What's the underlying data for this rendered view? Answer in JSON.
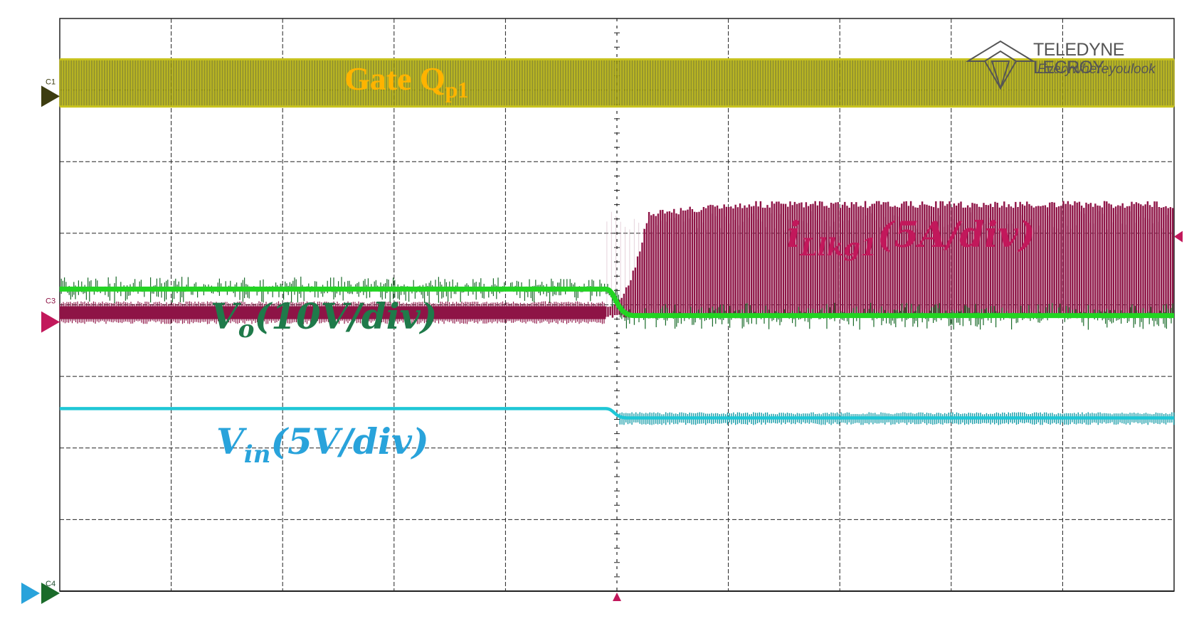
{
  "colors": {
    "gate": "#c8c31e",
    "gate_label": "#ffb300",
    "ilkg": "#8e1446",
    "ilkg_label": "#c2185b",
    "vo": "#22d422",
    "vo_dark": "#1a6b2a",
    "vo_label": "#1f7a4a",
    "vin": "#1fc7d6",
    "vin_label": "#29a3db",
    "grid": "#222222"
  },
  "brand": {
    "name": "TELEDYNE LECROY",
    "tagline": "Everywhereyoulook"
  },
  "markers": {
    "c1": "C1",
    "c3": "C3",
    "c4": "C4"
  },
  "labels": {
    "gate": {
      "text": "Gate Q",
      "sub": "p1"
    },
    "ilkg": {
      "base": "i",
      "sub": "Llkg1",
      "rest": "(5A/div)"
    },
    "vo": {
      "base": "V",
      "sub": "o",
      "rest": "(10V/div)"
    },
    "vin": {
      "base": "V",
      "sub": "in",
      "rest": "(5V/div)"
    }
  },
  "chart_data": {
    "type": "line",
    "title": "",
    "xlabel": "",
    "ylabel": "",
    "grid": true,
    "xlim": [
      0,
      10
    ],
    "ylim": [
      -4,
      4
    ],
    "divisions": {
      "x": 10,
      "y": 8
    },
    "trigger_x": 5,
    "series": [
      {
        "name": "Gate Q_p1",
        "kind": "switching",
        "low": 2.77,
        "high": 3.43,
        "x_start": 0,
        "x_end": 10
      },
      {
        "name": "i_Llkg1 (5A/div)",
        "kind": "current",
        "before": {
          "low": -0.2,
          "high": -0.02
        },
        "after": {
          "low": -0.13,
          "high": 1.45
        },
        "step_x": 4.9
      },
      {
        "name": "V_o (10V/div)",
        "kind": "step",
        "before": 0.22,
        "after": -0.15,
        "step_x": 4.9
      },
      {
        "name": "V_in (5V/div)",
        "kind": "step",
        "before": -1.45,
        "after": -1.58,
        "step_x": 4.9
      }
    ]
  }
}
